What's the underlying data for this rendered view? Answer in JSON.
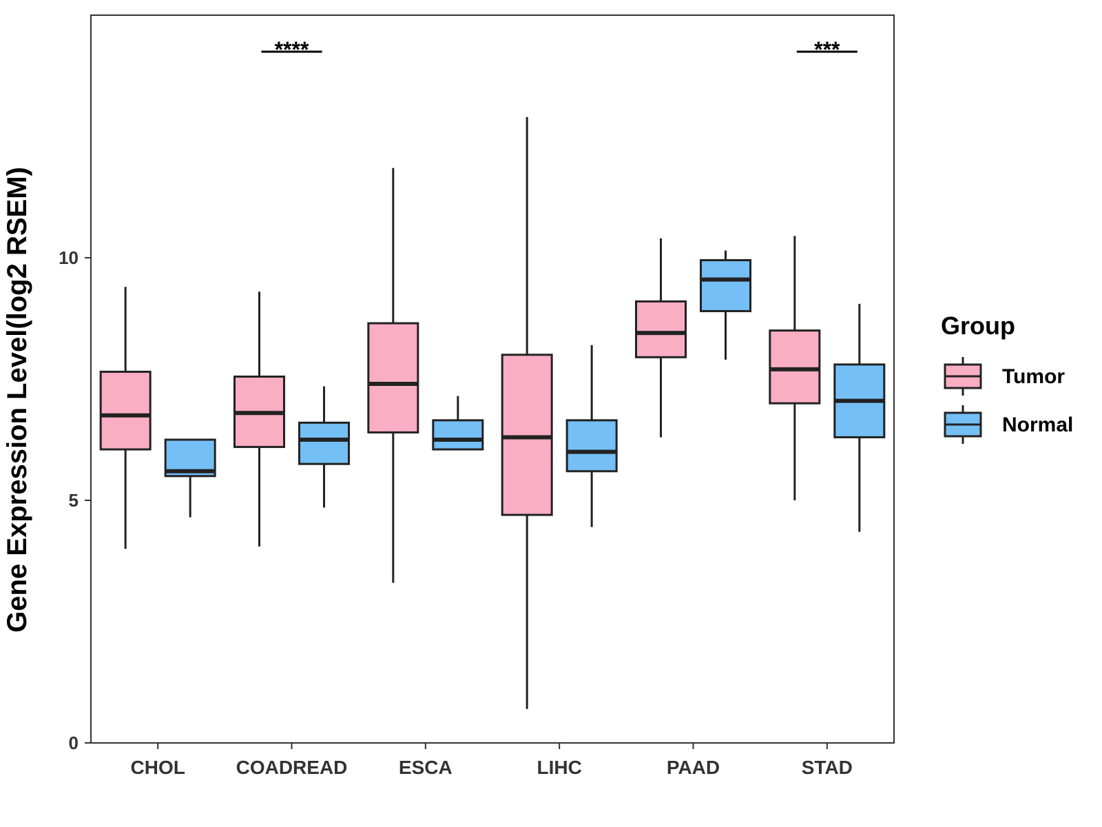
{
  "chart_data": {
    "type": "boxplot",
    "ylabel": "Gene Expression Level(log2 RSEM)",
    "xlabel": "",
    "ylim": [
      0,
      15
    ],
    "yticks": [
      0,
      5,
      10
    ],
    "categories": [
      "CHOL",
      "COADREAD",
      "ESCA",
      "LIHC",
      "PAAD",
      "STAD"
    ],
    "legend": {
      "title": "Group",
      "position": "right",
      "entries": [
        {
          "name": "Tumor",
          "color": "#F9AEC3"
        },
        {
          "name": "Normal",
          "color": "#74BFF5"
        }
      ]
    },
    "series": [
      {
        "name": "Tumor",
        "color": "#F9AEC3",
        "boxes": [
          {
            "category": "CHOL",
            "min": 4.0,
            "q1": 6.05,
            "median": 6.75,
            "q3": 7.65,
            "max": 9.4
          },
          {
            "category": "COADREAD",
            "min": 4.05,
            "q1": 6.1,
            "median": 6.8,
            "q3": 7.55,
            "max": 9.3
          },
          {
            "category": "ESCA",
            "min": 3.3,
            "q1": 6.4,
            "median": 7.4,
            "q3": 8.65,
            "max": 11.85
          },
          {
            "category": "LIHC",
            "min": 0.7,
            "q1": 4.7,
            "median": 6.3,
            "q3": 8.0,
            "max": 12.9
          },
          {
            "category": "PAAD",
            "min": 6.3,
            "q1": 7.95,
            "median": 8.45,
            "q3": 9.1,
            "max": 10.4
          },
          {
            "category": "STAD",
            "min": 5.0,
            "q1": 7.0,
            "median": 7.7,
            "q3": 8.5,
            "max": 10.45
          }
        ]
      },
      {
        "name": "Normal",
        "color": "#74BFF5",
        "boxes": [
          {
            "category": "CHOL",
            "min": 4.65,
            "q1": 5.5,
            "median": 5.6,
            "q3": 6.25,
            "max": 6.25
          },
          {
            "category": "COADREAD",
            "min": 4.85,
            "q1": 5.75,
            "median": 6.25,
            "q3": 6.6,
            "max": 7.35
          },
          {
            "category": "ESCA",
            "min": 6.05,
            "q1": 6.05,
            "median": 6.25,
            "q3": 6.65,
            "max": 7.15
          },
          {
            "category": "LIHC",
            "min": 4.45,
            "q1": 5.6,
            "median": 6.0,
            "q3": 6.65,
            "max": 8.2
          },
          {
            "category": "PAAD",
            "min": 7.9,
            "q1": 8.9,
            "median": 9.55,
            "q3": 9.95,
            "max": 10.15
          },
          {
            "category": "STAD",
            "min": 4.35,
            "q1": 6.3,
            "median": 7.05,
            "q3": 7.8,
            "max": 9.05
          }
        ]
      }
    ],
    "significance": [
      {
        "category": "COADREAD",
        "label": "****"
      },
      {
        "category": "STAD",
        "label": "***"
      }
    ]
  }
}
